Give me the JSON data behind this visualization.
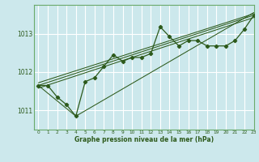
{
  "bg_color": "#cce8ec",
  "grid_color": "#ffffff",
  "line_color": "#2d5a1b",
  "xlabel": "Graphe pression niveau de la mer (hPa)",
  "xlim": [
    -0.5,
    23
  ],
  "ylim": [
    1010.5,
    1013.75
  ],
  "yticks": [
    1011,
    1012,
    1013
  ],
  "xticks": [
    0,
    1,
    2,
    3,
    4,
    5,
    6,
    7,
    8,
    9,
    10,
    11,
    12,
    13,
    14,
    15,
    16,
    17,
    18,
    19,
    20,
    21,
    22,
    23
  ],
  "series_main": {
    "x": [
      0,
      1,
      2,
      3,
      4,
      5,
      6,
      7,
      8,
      9,
      10,
      11,
      12,
      13,
      14,
      15,
      16,
      17,
      18,
      19,
      20,
      21,
      22,
      23
    ],
    "y": [
      1011.65,
      1011.65,
      1011.35,
      1011.15,
      1010.85,
      1011.75,
      1011.85,
      1012.15,
      1012.45,
      1012.28,
      1012.38,
      1012.38,
      1012.48,
      1013.18,
      1012.92,
      1012.68,
      1012.82,
      1012.82,
      1012.68,
      1012.68,
      1012.68,
      1012.82,
      1013.12,
      1013.48
    ]
  },
  "line1": {
    "x": [
      0,
      4,
      23
    ],
    "y": [
      1011.65,
      1010.85,
      1013.55
    ]
  },
  "line2": {
    "x": [
      0,
      23
    ],
    "y": [
      1011.65,
      1013.48
    ]
  },
  "line3": {
    "x": [
      0,
      23
    ],
    "y": [
      1011.72,
      1013.52
    ]
  },
  "line4": {
    "x": [
      0,
      23
    ],
    "y": [
      1011.58,
      1013.42
    ]
  }
}
